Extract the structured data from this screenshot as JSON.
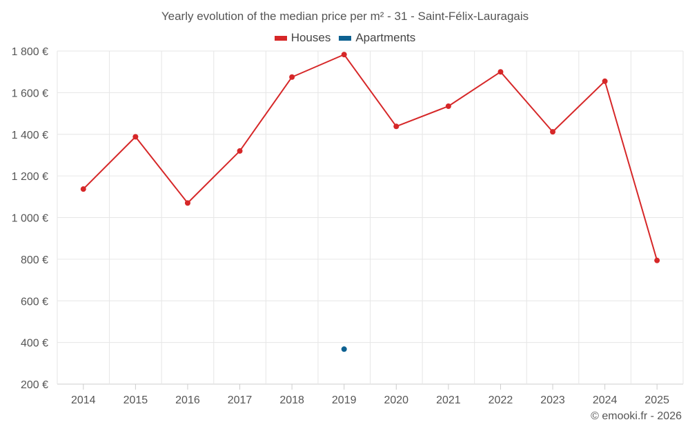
{
  "chart_data": {
    "type": "line",
    "title": "Yearly evolution of the median price per m² - 31 - Saint-Félix-Lauragais",
    "categories": [
      "2014",
      "2015",
      "2016",
      "2017",
      "2018",
      "2019",
      "2020",
      "2021",
      "2022",
      "2023",
      "2024",
      "2025"
    ],
    "y_ticks": [
      200,
      400,
      600,
      800,
      1000,
      1200,
      1400,
      1600,
      1800
    ],
    "y_tick_labels": [
      "200 €",
      "400 €",
      "600 €",
      "800 €",
      "1 000 €",
      "1 200 €",
      "1 400 €",
      "1 600 €",
      "1 800 €"
    ],
    "ylim": [
      200,
      1800
    ],
    "grid": true,
    "legend_position": "top-center",
    "series": [
      {
        "name": "Houses",
        "color": "#d62728",
        "values": [
          1137,
          1388,
          1070,
          1320,
          1675,
          1783,
          1438,
          1535,
          1700,
          1412,
          1655,
          794
        ]
      },
      {
        "name": "Apartments",
        "color": "#0d6191",
        "values": [
          null,
          null,
          null,
          null,
          null,
          368,
          null,
          null,
          null,
          null,
          null,
          null
        ]
      }
    ]
  },
  "credit": "© emooki.fr - 2026"
}
